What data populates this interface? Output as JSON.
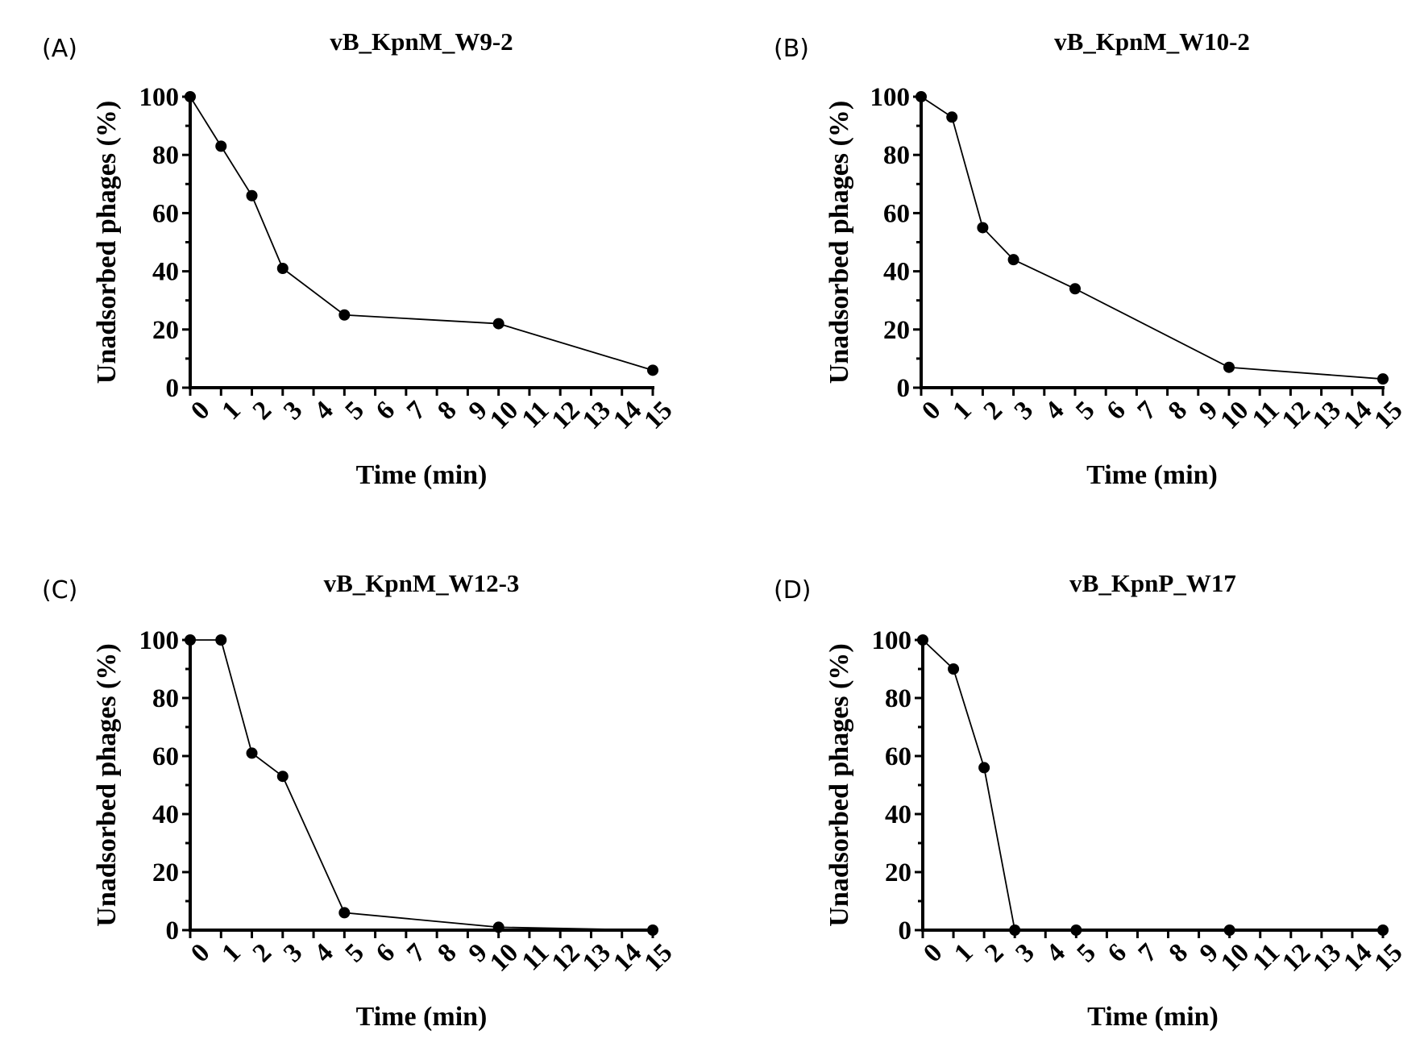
{
  "chart_data": [
    {
      "type": "line",
      "panel": "(A)",
      "title": "vB_KpnM_W9-2",
      "xlabel": "Time (min)",
      "ylabel": "Unadsorbed phages (%)",
      "xlim": [
        0,
        15
      ],
      "ylim": [
        0,
        100
      ],
      "x_ticks": [
        0,
        1,
        2,
        3,
        4,
        5,
        6,
        7,
        8,
        9,
        10,
        11,
        12,
        13,
        14,
        15
      ],
      "y_ticks": [
        0,
        20,
        40,
        60,
        80,
        100
      ],
      "grid": false,
      "x": [
        0,
        1,
        2,
        3,
        5,
        10,
        15
      ],
      "values": [
        100,
        83,
        66,
        41,
        25,
        22,
        6
      ]
    },
    {
      "type": "line",
      "panel": "(B)",
      "title": "vB_KpnM_W10-2",
      "xlabel": "Time (min)",
      "ylabel": "Unadsorbed phages (%)",
      "xlim": [
        0,
        15
      ],
      "ylim": [
        0,
        100
      ],
      "x_ticks": [
        0,
        1,
        2,
        3,
        4,
        5,
        6,
        7,
        8,
        9,
        10,
        11,
        12,
        13,
        14,
        15
      ],
      "y_ticks": [
        0,
        20,
        40,
        60,
        80,
        100
      ],
      "grid": false,
      "x": [
        0,
        1,
        2,
        3,
        5,
        10,
        15
      ],
      "values": [
        100,
        93,
        55,
        44,
        34,
        7,
        3
      ]
    },
    {
      "type": "line",
      "panel": "(C)",
      "title": "vB_KpnM_W12-3",
      "xlabel": "Time (min)",
      "ylabel": "Unadsorbed phages (%)",
      "xlim": [
        0,
        15
      ],
      "ylim": [
        0,
        100
      ],
      "x_ticks": [
        0,
        1,
        2,
        3,
        4,
        5,
        6,
        7,
        8,
        9,
        10,
        11,
        12,
        13,
        14,
        15
      ],
      "y_ticks": [
        0,
        20,
        40,
        60,
        80,
        100
      ],
      "grid": false,
      "x": [
        0,
        1,
        2,
        3,
        5,
        10,
        15
      ],
      "values": [
        100,
        100,
        61,
        53,
        6,
        1,
        0
      ]
    },
    {
      "type": "line",
      "panel": "(D)",
      "title": "vB_KpnP_W17",
      "xlabel": "Time (min)",
      "ylabel": "Unadsorbed phages (%)",
      "xlim": [
        0,
        15
      ],
      "ylim": [
        0,
        100
      ],
      "x_ticks": [
        0,
        1,
        2,
        3,
        4,
        5,
        6,
        7,
        8,
        9,
        10,
        11,
        12,
        13,
        14,
        15
      ],
      "y_ticks": [
        0,
        20,
        40,
        60,
        80,
        100
      ],
      "grid": false,
      "x": [
        0,
        1,
        2,
        3,
        5,
        10,
        15
      ],
      "values": [
        100,
        90,
        56,
        0,
        0,
        0,
        0
      ]
    }
  ]
}
